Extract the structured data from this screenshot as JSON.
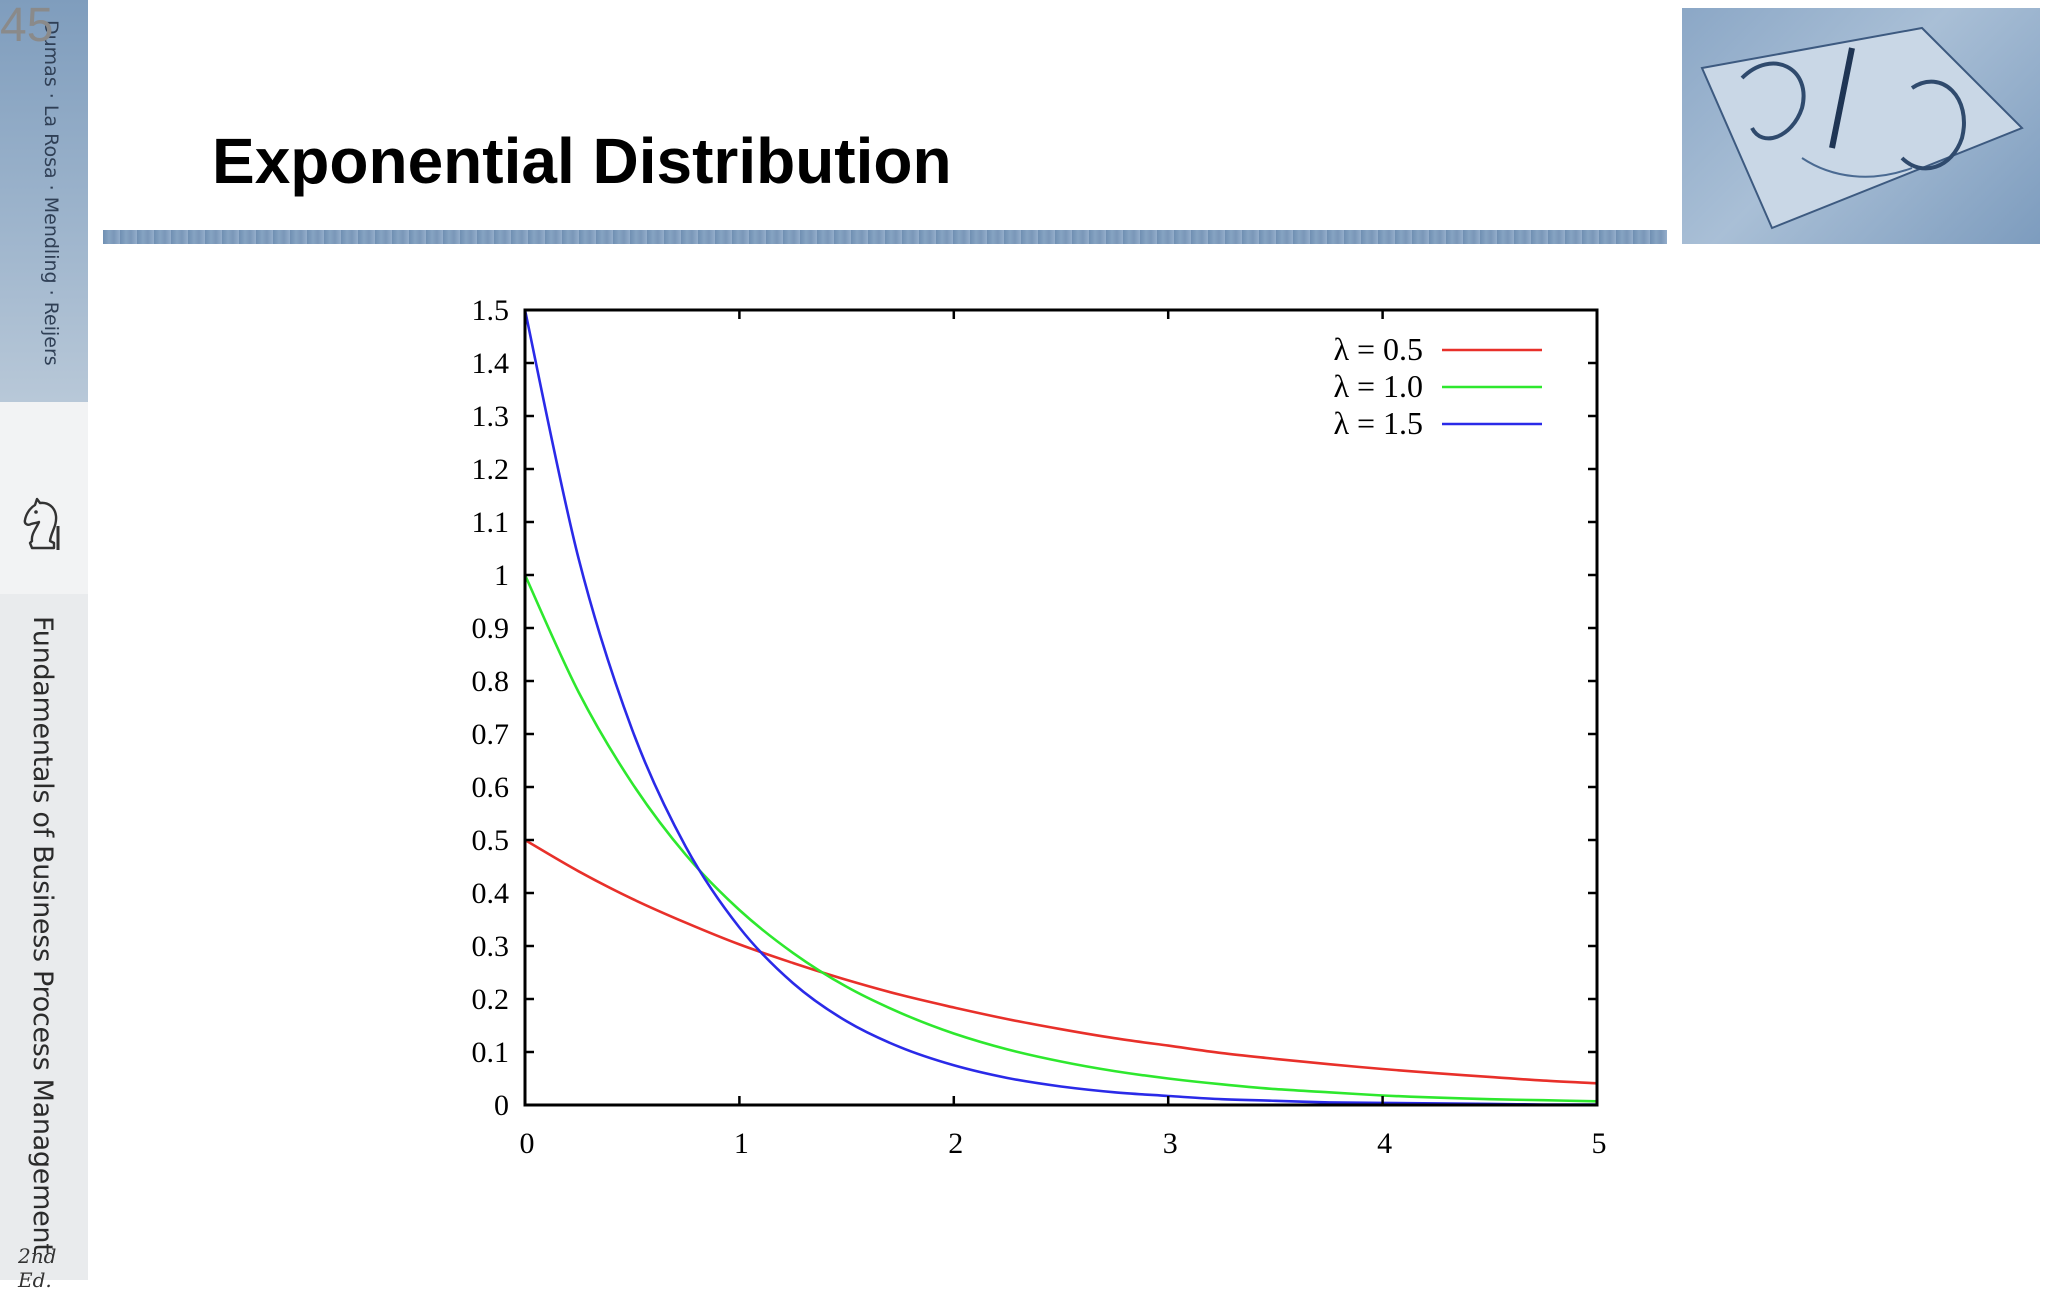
{
  "slide": {
    "number": "45",
    "title": "Exponential Distribution"
  },
  "sidebar": {
    "authors": "Dumas · La Rosa · Mendling · Reijers",
    "book_title": "Fundamentals of Business Process Management",
    "edition": "2nd Ed.",
    "publisher_logo": "knight-chess-piece-icon"
  },
  "header_image": "hands-drawing-illustration",
  "colors": {
    "series_05": "#e8302a",
    "series_10": "#2ee82e",
    "series_15": "#2a2ae8",
    "sidebar_blue": "#8ca6c4"
  },
  "chart_data": {
    "type": "line",
    "title": "",
    "xlabel": "",
    "ylabel": "",
    "xlim": [
      0,
      5
    ],
    "ylim": [
      0,
      1.5
    ],
    "x_ticks": [
      "0",
      "1",
      "2",
      "3",
      "4",
      "5"
    ],
    "y_ticks": [
      "0",
      "0.1",
      "0.2",
      "0.3",
      "0.4",
      "0.5",
      "0.6",
      "0.7",
      "0.8",
      "0.9",
      "1",
      "1.1",
      "1.2",
      "1.3",
      "1.4",
      "1.5"
    ],
    "grid": false,
    "legend_position": "top-right",
    "x": [
      0,
      0.25,
      0.5,
      0.75,
      1,
      1.25,
      1.5,
      1.75,
      2,
      2.25,
      2.5,
      2.75,
      3,
      3.25,
      3.5,
      3.75,
      4,
      4.25,
      4.5,
      4.75,
      5
    ],
    "series": [
      {
        "name": "λ = 0.5",
        "values": [
          0.5,
          0.441,
          0.389,
          0.344,
          0.303,
          0.268,
          0.236,
          0.208,
          0.184,
          0.162,
          0.143,
          0.126,
          0.112,
          0.098,
          0.087,
          0.077,
          0.068,
          0.06,
          0.053,
          0.046,
          0.041
        ]
      },
      {
        "name": "λ = 1.0",
        "values": [
          1.0,
          0.779,
          0.607,
          0.472,
          0.368,
          0.287,
          0.223,
          0.174,
          0.135,
          0.105,
          0.082,
          0.064,
          0.05,
          0.039,
          0.03,
          0.024,
          0.018,
          0.014,
          0.011,
          0.009,
          0.007
        ]
      },
      {
        "name": "λ = 1.5",
        "values": [
          1.5,
          1.031,
          0.708,
          0.487,
          0.335,
          0.23,
          0.158,
          0.109,
          0.075,
          0.051,
          0.035,
          0.024,
          0.017,
          0.011,
          0.008,
          0.005,
          0.004,
          0.003,
          0.002,
          0.001,
          0.001
        ]
      }
    ]
  }
}
